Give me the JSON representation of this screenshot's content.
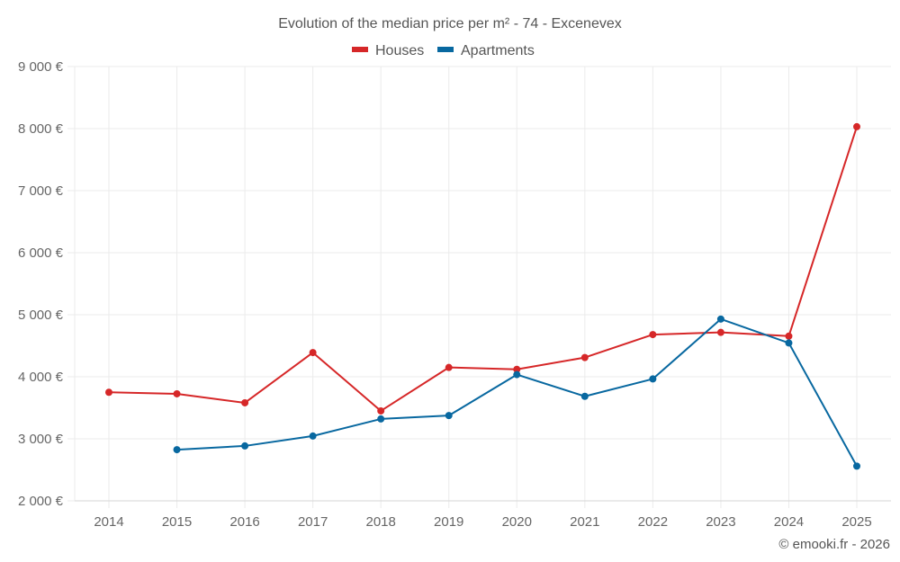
{
  "chart_data": {
    "type": "line",
    "title": "Evolution of the median price per m² - 74 - Excenevex",
    "xlabel": "",
    "ylabel": "",
    "x": [
      "2014",
      "2015",
      "2016",
      "2017",
      "2018",
      "2019",
      "2020",
      "2021",
      "2022",
      "2023",
      "2024",
      "2025"
    ],
    "ylim": [
      2000,
      9000
    ],
    "yticks": [
      2000,
      3000,
      4000,
      5000,
      6000,
      7000,
      8000,
      9000
    ],
    "ytick_labels": [
      "2 000 €",
      "3 000 €",
      "4 000 €",
      "5 000 €",
      "6 000 €",
      "7 000 €",
      "8 000 €",
      "9 000 €"
    ],
    "grid": true,
    "legend_position": "top-center",
    "series": [
      {
        "name": "Houses",
        "color": "#d62728",
        "values": [
          3750,
          3725,
          3580,
          4390,
          3450,
          4150,
          4120,
          4310,
          4680,
          4715,
          4655,
          8030
        ]
      },
      {
        "name": "Apartments",
        "color": "#0868a0",
        "values": [
          null,
          2825,
          2885,
          3045,
          3320,
          3375,
          4035,
          3685,
          3965,
          4930,
          4545,
          2560
        ]
      }
    ],
    "credit": "© emooki.fr - 2026"
  }
}
